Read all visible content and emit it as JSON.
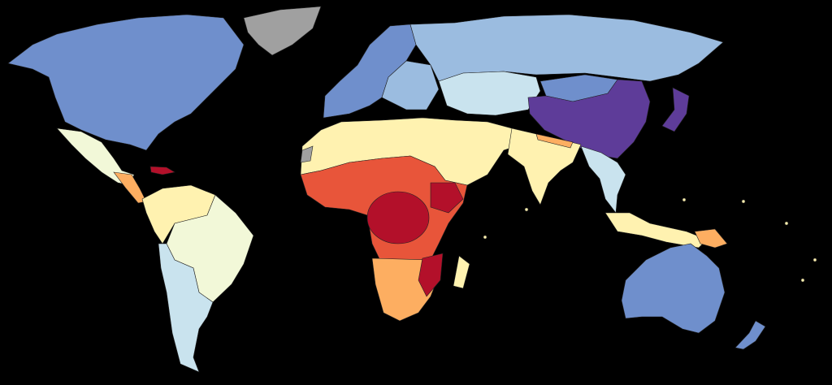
{
  "map": {
    "background": "#000000",
    "palette": {
      "no_data": "#a0a0a0",
      "class_1": "#5e3c99",
      "class_2": "#6f8fcc",
      "class_3": "#9bbce0",
      "class_4": "#c9e3ee",
      "class_5": "#f2f8d8",
      "class_6": "#fff2b0",
      "class_7": "#fdae61",
      "class_8": "#e8553a",
      "class_9": "#b3102a"
    },
    "regions": {
      "north-america": "class_2",
      "greenland": "no_data",
      "mexico": "class_5",
      "central-america": "class_7",
      "caribbean": "class_9",
      "south-america-north": "class_6",
      "brazil": "class_5",
      "south-america-south": "class_4",
      "europe": "class_2",
      "eastern-europe": "class_3",
      "russia": "class_3",
      "central-asia": "class_4",
      "mongolia": "class_2",
      "china": "class_1",
      "japan": "class_1",
      "north-africa-middle-east": "class_6",
      "western-sahara": "no_data",
      "south-asia": "class_6",
      "nepal-strip": "class_7",
      "southeast-asia": "class_4",
      "maritime-asia": "class_6",
      "papua": "class_7",
      "sub-saharan-africa": "class_8",
      "central-africa": "class_9",
      "ethiopia": "class_9",
      "southern-africa": "class_7",
      "mozambique": "class_9",
      "madagascar": "class_6",
      "australia": "class_2",
      "new-zealand": "class_2",
      "pacific-islands": "class_6"
    }
  }
}
